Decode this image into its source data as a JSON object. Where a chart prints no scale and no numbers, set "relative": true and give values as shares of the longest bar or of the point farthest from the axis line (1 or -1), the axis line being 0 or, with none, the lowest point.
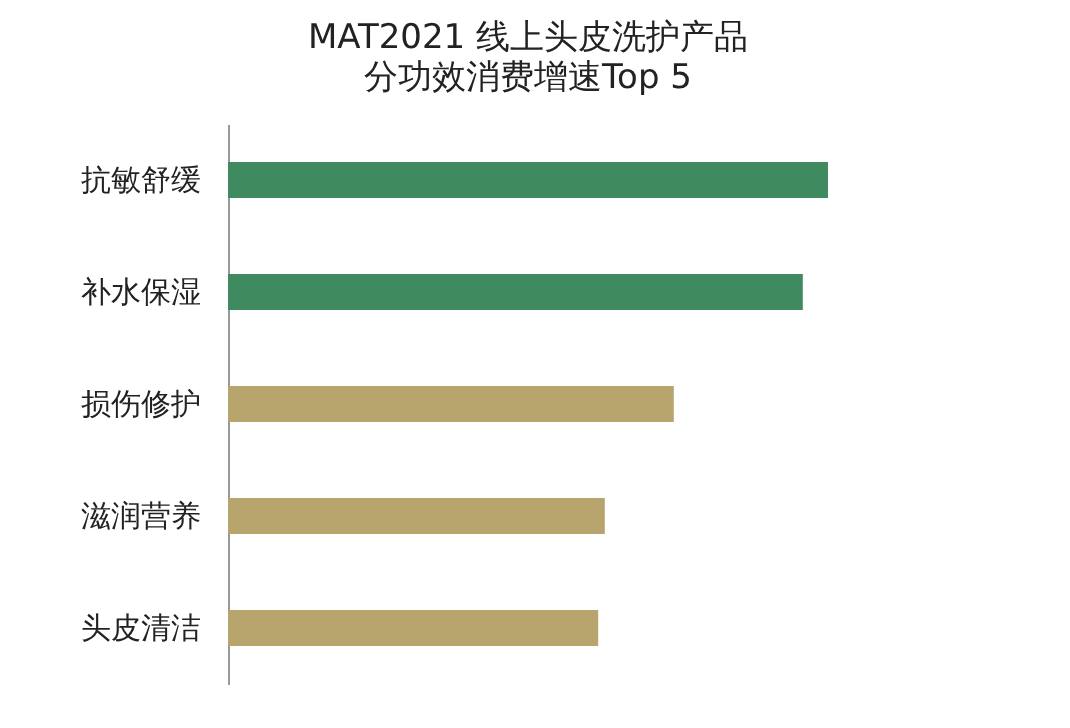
{
  "chart_data": {
    "type": "bar",
    "orientation": "horizontal",
    "relative": true,
    "title": "MAT2021 线上头皮洗护产品",
    "subtitle": "分功效消费增速Top 5",
    "categories": [
      "抗敏舒缓",
      "补水保湿",
      "损伤修护",
      "滋润营养",
      "头皮清洁"
    ],
    "values": [
      1,
      0.958,
      0.743,
      0.628,
      0.617
    ],
    "colors": [
      "#3f8a5f",
      "#3f8a5f",
      "#b8a56e",
      "#b8a56e",
      "#b8a56e"
    ]
  }
}
